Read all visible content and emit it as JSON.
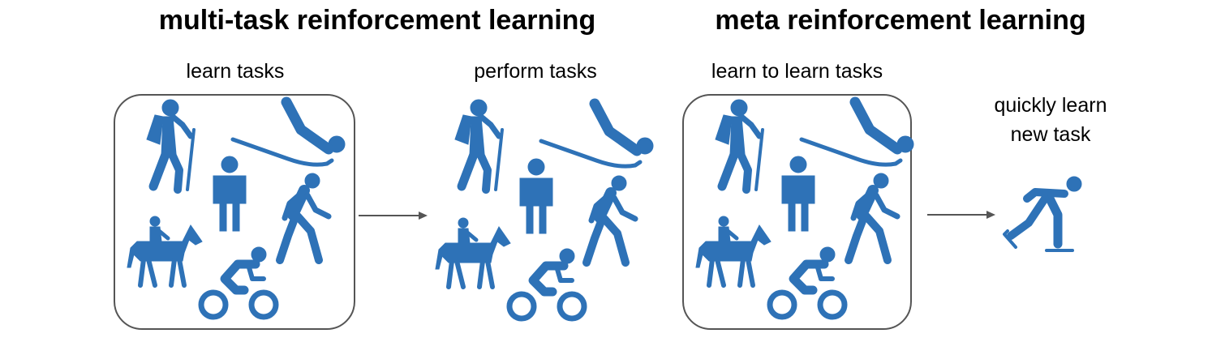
{
  "titles": {
    "multi_task": "multi-task reinforcement learning",
    "meta": "meta reinforcement learning"
  },
  "captions": {
    "learn_tasks": "learn tasks",
    "perform_tasks": "perform tasks",
    "learn_to_learn": "learn to learn tasks",
    "quickly_line1": "quickly learn",
    "quickly_line2": "new task"
  },
  "colors": {
    "icon": "#2e72b7",
    "box_border": "#555555",
    "arrow": "#555555"
  },
  "icon_groups": [
    {
      "name": "training-task-group",
      "icons": [
        "hiking-icon",
        "sledding-icon",
        "standing-person-icon",
        "walking-person-icon",
        "horse-riding-icon",
        "cycling-icon"
      ]
    },
    {
      "name": "performed-task-group",
      "icons": [
        "hiking-icon",
        "sledding-icon",
        "standing-person-icon",
        "walking-person-icon",
        "horse-riding-icon",
        "cycling-icon"
      ]
    },
    {
      "name": "meta-training-task-group",
      "icons": [
        "hiking-icon",
        "sledding-icon",
        "standing-person-icon",
        "walking-person-icon",
        "horse-riding-icon",
        "cycling-icon"
      ]
    }
  ],
  "new_task_icon": "ice-skating-icon"
}
